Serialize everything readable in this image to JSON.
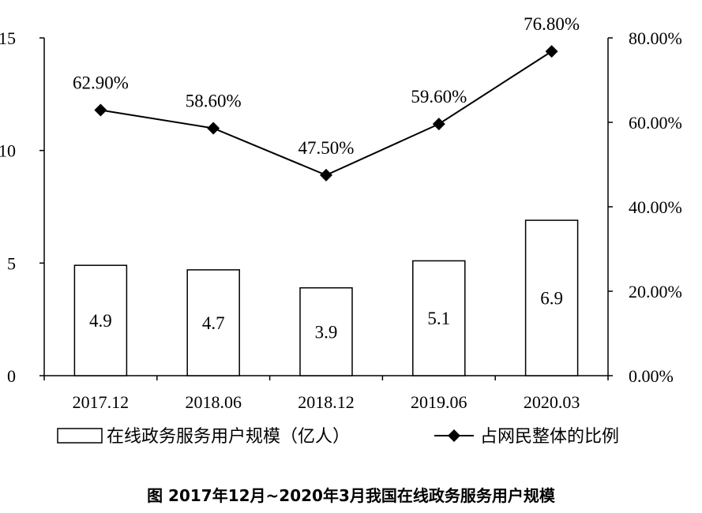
{
  "figure_caption": "图  2017年12月~2020年3月我国在线政务服务用户规模",
  "chart_data": {
    "type": "bar",
    "categories": [
      "2017.12",
      "2018.06",
      "2018.12",
      "2019.06",
      "2020.03"
    ],
    "series": [
      {
        "name": "在线政务服务用户规模（亿人）",
        "type": "bar",
        "axis": "left",
        "values": [
          4.9,
          4.7,
          3.9,
          5.1,
          6.9
        ],
        "labels": [
          "4.9",
          "4.7",
          "3.9",
          "5.1",
          "6.9"
        ]
      },
      {
        "name": "占网民整体的比例",
        "type": "line",
        "axis": "right",
        "values": [
          62.9,
          58.6,
          47.5,
          59.6,
          76.8
        ],
        "labels": [
          "62.90%",
          "58.60%",
          "47.50%",
          "59.60%",
          "76.80%"
        ]
      }
    ],
    "y_left": {
      "min": 0,
      "max": 15,
      "ticks": [
        0,
        5,
        10,
        15
      ],
      "tick_labels": [
        "0",
        "5",
        "10",
        "15"
      ]
    },
    "y_right": {
      "min": 0,
      "max": 80,
      "ticks": [
        0,
        20,
        40,
        60,
        80
      ],
      "tick_labels": [
        "0.00%",
        "20.00%",
        "40.00%",
        "60.00%",
        "80.00%"
      ]
    },
    "legend_position": "bottom",
    "grid": false,
    "colors": {
      "bar_fill": "#ffffff",
      "bar_stroke": "#000000",
      "line": "#000000",
      "marker": "#000000"
    }
  }
}
